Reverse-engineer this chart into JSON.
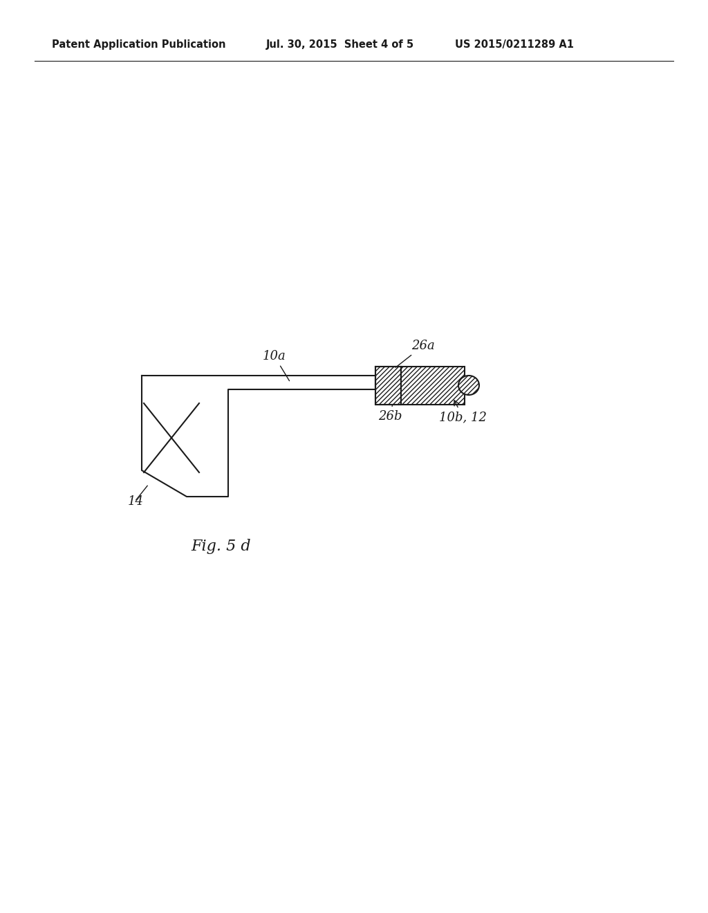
{
  "header_left": "Patent Application Publication",
  "header_mid": "Jul. 30, 2015  Sheet 4 of 5",
  "header_right": "US 2015/0211289 A1",
  "figure_caption": "Fig. 5 d",
  "bg_color": "#ffffff",
  "line_color": "#1a1a1a",
  "hatch_color": "#333333",
  "label_14": "14",
  "label_10a": "10a",
  "label_26a": "26a",
  "label_26b": "26b",
  "label_10b12": "10b, 12"
}
